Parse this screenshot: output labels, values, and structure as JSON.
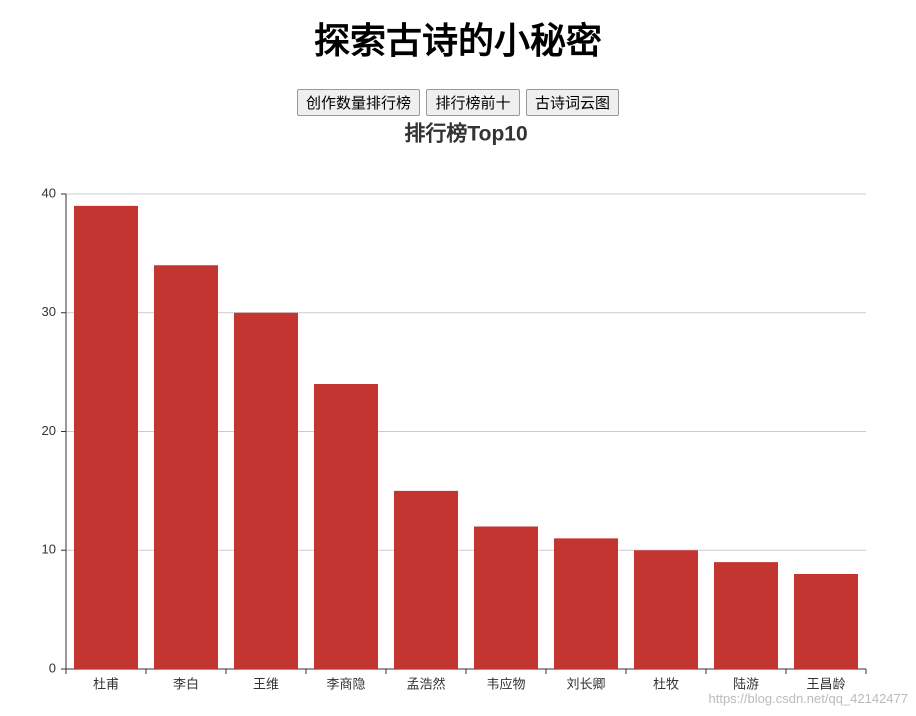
{
  "page": {
    "title": "探索古诗的小秘密",
    "buttons": [
      "创作数量排行榜",
      "排行榜前十",
      "古诗词云图"
    ],
    "watermark": "https://blog.csdn.net/qq_42142477"
  },
  "chart_data": {
    "type": "bar",
    "title": "排行榜Top10",
    "categories": [
      "杜甫",
      "李白",
      "王维",
      "李商隐",
      "孟浩然",
      "韦应物",
      "刘长卿",
      "杜牧",
      "陆游",
      "王昌龄"
    ],
    "values": [
      39,
      34,
      30,
      24,
      15,
      12,
      11,
      10,
      9,
      8
    ],
    "color": "#c23531",
    "ylim": [
      0,
      40
    ],
    "yticks": [
      0,
      10,
      20,
      30,
      40
    ],
    "grid": true
  }
}
